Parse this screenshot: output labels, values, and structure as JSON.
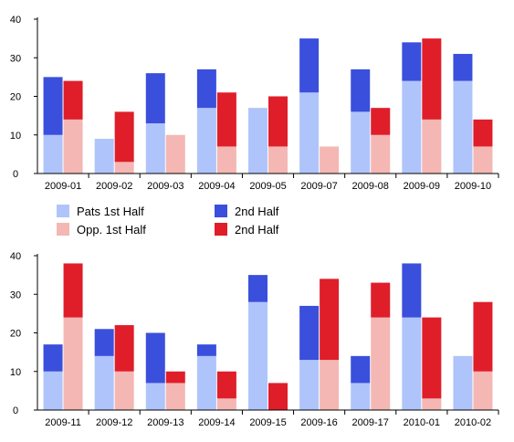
{
  "colors": {
    "pats_first": "#afc4fa",
    "pats_second": "#3a4fdc",
    "opp_first": "#f4b7b4",
    "opp_second": "#df1e2a",
    "axis": "#000000",
    "grid": "#e6e6e6"
  },
  "legend": [
    {
      "label": "Pats 1st Half",
      "color_key": "pats_first"
    },
    {
      "label": "2nd Half",
      "color_key": "pats_second"
    },
    {
      "label": "Opp. 1st Half",
      "color_key": "opp_first"
    },
    {
      "label": "2nd Half",
      "color_key": "opp_second"
    }
  ],
  "chart_data": [
    {
      "type": "bar",
      "stacked": true,
      "ylim": [
        0,
        40
      ],
      "yticks": [
        0,
        10,
        20,
        30,
        40
      ],
      "categories": [
        "2009-01",
        "2009-02",
        "2009-03",
        "2009-04",
        "2009-05",
        "2009-07",
        "2009-08",
        "2009-09",
        "2009-10"
      ],
      "series": [
        {
          "name": "Pats 1st Half",
          "stack": "pats",
          "color_key": "pats_first",
          "values": [
            10,
            9,
            13,
            17,
            17,
            21,
            16,
            24,
            24
          ]
        },
        {
          "name": "2nd Half",
          "stack": "pats",
          "color_key": "pats_second",
          "values": [
            15,
            0,
            13,
            10,
            0,
            14,
            11,
            10,
            7
          ]
        },
        {
          "name": "Opp. 1st Half",
          "stack": "opp",
          "color_key": "opp_first",
          "values": [
            14,
            3,
            10,
            7,
            7,
            7,
            10,
            14,
            7
          ]
        },
        {
          "name": "2nd Half",
          "stack": "opp",
          "color_key": "opp_second",
          "values": [
            10,
            13,
            0,
            14,
            13,
            0,
            7,
            21,
            7
          ]
        }
      ]
    },
    {
      "type": "bar",
      "stacked": true,
      "ylim": [
        0,
        40
      ],
      "yticks": [
        0,
        10,
        20,
        30,
        40
      ],
      "categories": [
        "2009-11",
        "2009-12",
        "2009-13",
        "2009-14",
        "2009-15",
        "2009-16",
        "2009-17",
        "2010-01",
        "2010-02"
      ],
      "series": [
        {
          "name": "Pats 1st Half",
          "stack": "pats",
          "color_key": "pats_first",
          "values": [
            10,
            14,
            7,
            14,
            28,
            13,
            7,
            24,
            14
          ]
        },
        {
          "name": "2nd Half",
          "stack": "pats",
          "color_key": "pats_second",
          "values": [
            7,
            7,
            13,
            3,
            7,
            14,
            7,
            14,
            0
          ]
        },
        {
          "name": "Opp. 1st Half",
          "stack": "opp",
          "color_key": "opp_first",
          "values": [
            24,
            10,
            7,
            3,
            0,
            13,
            24,
            3,
            10
          ]
        },
        {
          "name": "2nd Half",
          "stack": "opp",
          "color_key": "opp_second",
          "values": [
            14,
            12,
            3,
            7,
            7,
            21,
            9,
            21,
            18
          ]
        }
      ]
    }
  ]
}
